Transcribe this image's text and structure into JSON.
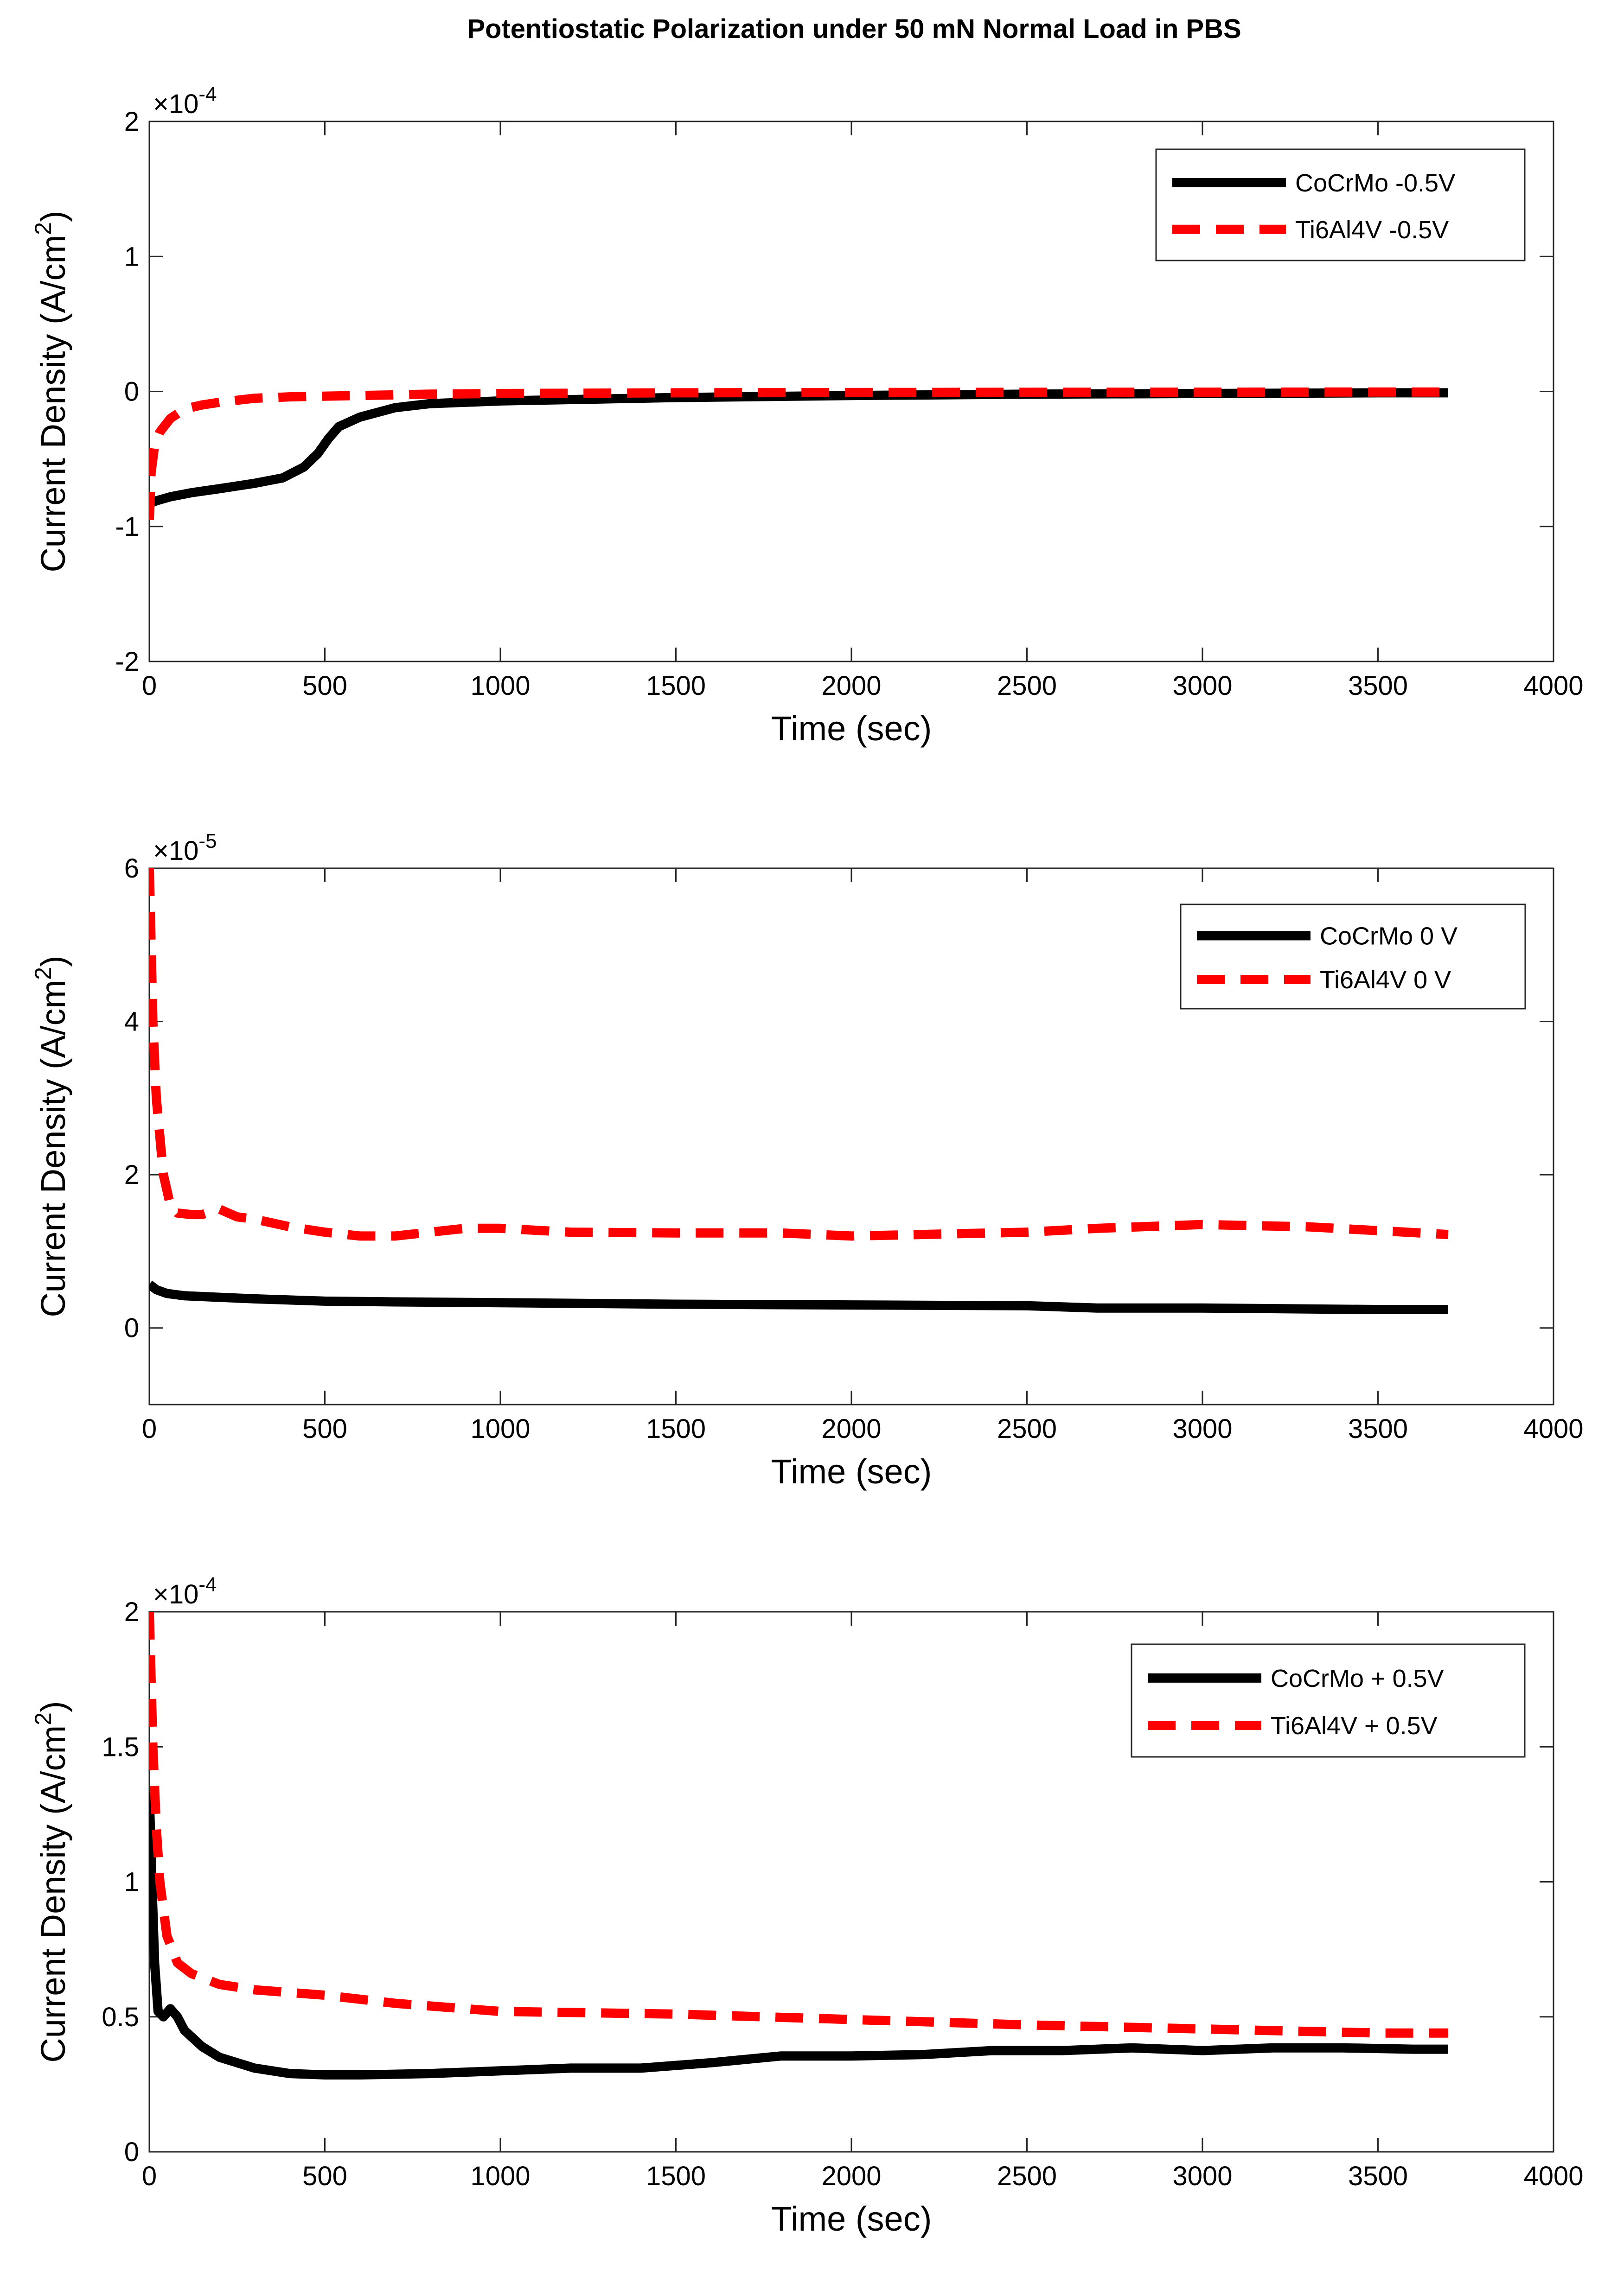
{
  "figure_title": "Potentiostatic Polarization under 50 mN Normal Load in PBS",
  "colors": {
    "cocrmo": "#000000",
    "ti6al4v": "#ff0000"
  },
  "chart_data": [
    {
      "type": "line",
      "title": "",
      "xlabel": "Time (sec)",
      "ylabel_main": "Current Density (A/cm",
      "ylabel_sup": "2",
      "ylabel_close": ")",
      "xlim": [
        0,
        4000
      ],
      "ylim": [
        -2,
        2
      ],
      "xticks": [
        0,
        500,
        1000,
        1500,
        2000,
        2500,
        3000,
        3500,
        4000
      ],
      "yticks": [
        -2,
        -1,
        0,
        1,
        2
      ],
      "ytick_labels": [
        "-2",
        "-1",
        "0",
        "1",
        "2"
      ],
      "multiplier": {
        "base": "×10",
        "exp": "-4"
      },
      "legend": [
        "CoCrMo -0.5V",
        "Ti6Al4V -0.5V"
      ],
      "legend_position": "top-right",
      "series": [
        {
          "name": "CoCrMo -0.5V",
          "style": "solid",
          "color": "#000000",
          "x": [
            0,
            20,
            60,
            120,
            200,
            300,
            380,
            440,
            480,
            510,
            540,
            600,
            700,
            800,
            1000,
            1500,
            2000,
            2500,
            3000,
            3500,
            3700
          ],
          "y": [
            -0.83,
            -0.81,
            -0.78,
            -0.75,
            -0.72,
            -0.68,
            -0.64,
            -0.56,
            -0.46,
            -0.35,
            -0.26,
            -0.19,
            -0.12,
            -0.09,
            -0.07,
            -0.045,
            -0.03,
            -0.02,
            -0.015,
            -0.01,
            -0.01
          ]
        },
        {
          "name": "Ti6Al4V -0.5V",
          "style": "dashed",
          "color": "#ff0000",
          "x": [
            0,
            5,
            15,
            30,
            60,
            100,
            150,
            200,
            300,
            400,
            600,
            800,
            1000,
            1500,
            2000,
            2500,
            3000,
            3500,
            3700
          ],
          "y": [
            -0.95,
            -0.6,
            -0.4,
            -0.3,
            -0.2,
            -0.13,
            -0.1,
            -0.08,
            -0.05,
            -0.04,
            -0.03,
            -0.02,
            -0.015,
            -0.01,
            -0.008,
            -0.006,
            -0.005,
            -0.004,
            -0.004
          ]
        }
      ]
    },
    {
      "type": "line",
      "title": "",
      "xlabel": "Time (sec)",
      "ylabel_main": "Current Density (A/cm",
      "ylabel_sup": "2",
      "ylabel_close": ")",
      "xlim": [
        0,
        4000
      ],
      "ylim": [
        -1,
        6
      ],
      "xticks": [
        0,
        500,
        1000,
        1500,
        2000,
        2500,
        3000,
        3500,
        4000
      ],
      "yticks": [
        0,
        2,
        4,
        6
      ],
      "ytick_labels": [
        "0",
        "2",
        "4",
        "6"
      ],
      "multiplier": {
        "base": "×10",
        "exp": "-5"
      },
      "legend": [
        "CoCrMo 0 V",
        "Ti6Al4V 0 V"
      ],
      "legend_position": "top-right",
      "series": [
        {
          "name": "CoCrMo 0 V",
          "style": "solid",
          "color": "#000000",
          "x": [
            0,
            20,
            50,
            100,
            200,
            300,
            500,
            700,
            1000,
            1500,
            2000,
            2500,
            2700,
            3000,
            3500,
            3700
          ],
          "y": [
            0.57,
            0.5,
            0.45,
            0.42,
            0.4,
            0.38,
            0.35,
            0.34,
            0.33,
            0.31,
            0.3,
            0.29,
            0.26,
            0.26,
            0.24,
            0.24
          ]
        },
        {
          "name": "Ti6Al4V 0 V",
          "style": "dashed",
          "color": "#ff0000",
          "x": [
            0,
            5,
            10,
            20,
            40,
            60,
            80,
            120,
            150,
            200,
            250,
            300,
            400,
            500,
            600,
            700,
            800,
            900,
            1000,
            1200,
            1500,
            1800,
            2000,
            2200,
            2500,
            2700,
            3000,
            3300,
            3500,
            3700
          ],
          "y": [
            6.0,
            5.0,
            4.0,
            3.0,
            2.0,
            1.6,
            1.5,
            1.48,
            1.48,
            1.55,
            1.45,
            1.42,
            1.32,
            1.25,
            1.2,
            1.2,
            1.25,
            1.3,
            1.3,
            1.25,
            1.24,
            1.24,
            1.2,
            1.22,
            1.25,
            1.3,
            1.35,
            1.32,
            1.27,
            1.22
          ]
        }
      ]
    },
    {
      "type": "line",
      "title": "",
      "xlabel": "Time (sec)",
      "ylabel_main": "Current Density (A/cm",
      "ylabel_sup": "2",
      "ylabel_close": ")",
      "xlim": [
        0,
        4000
      ],
      "ylim": [
        0,
        2
      ],
      "xticks": [
        0,
        500,
        1000,
        1500,
        2000,
        2500,
        3000,
        3500,
        4000
      ],
      "yticks": [
        0,
        0.5,
        1,
        1.5,
        2
      ],
      "ytick_labels": [
        "0",
        "0.5",
        "1",
        "1.5",
        "2"
      ],
      "multiplier": {
        "base": "×10",
        "exp": "-4"
      },
      "legend": [
        "CoCrMo + 0.5V",
        "Ti6Al4V + 0.5V"
      ],
      "legend_position": "top-right",
      "series": [
        {
          "name": "CoCrMo + 0.5V",
          "style": "solid",
          "color": "#000000",
          "x": [
            0,
            5,
            15,
            25,
            40,
            60,
            80,
            100,
            150,
            200,
            300,
            400,
            500,
            600,
            800,
            1000,
            1200,
            1400,
            1600,
            1800,
            2000,
            2200,
            2400,
            2600,
            2800,
            3000,
            3200,
            3400,
            3600,
            3700
          ],
          "y": [
            1.33,
            1.1,
            0.7,
            0.52,
            0.5,
            0.53,
            0.5,
            0.45,
            0.39,
            0.35,
            0.31,
            0.29,
            0.285,
            0.285,
            0.29,
            0.3,
            0.31,
            0.31,
            0.33,
            0.355,
            0.355,
            0.36,
            0.375,
            0.375,
            0.385,
            0.375,
            0.385,
            0.385,
            0.38,
            0.38
          ]
        },
        {
          "name": "Ti6Al4V + 0.5V",
          "style": "dashed",
          "color": "#ff0000",
          "x": [
            0,
            5,
            10,
            20,
            30,
            50,
            80,
            120,
            200,
            300,
            500,
            700,
            1000,
            1500,
            2000,
            2500,
            3000,
            3500,
            3700
          ],
          "y": [
            2.0,
            1.75,
            1.5,
            1.2,
            1.0,
            0.8,
            0.7,
            0.66,
            0.62,
            0.6,
            0.58,
            0.55,
            0.52,
            0.51,
            0.49,
            0.47,
            0.455,
            0.44,
            0.44
          ]
        }
      ]
    }
  ]
}
